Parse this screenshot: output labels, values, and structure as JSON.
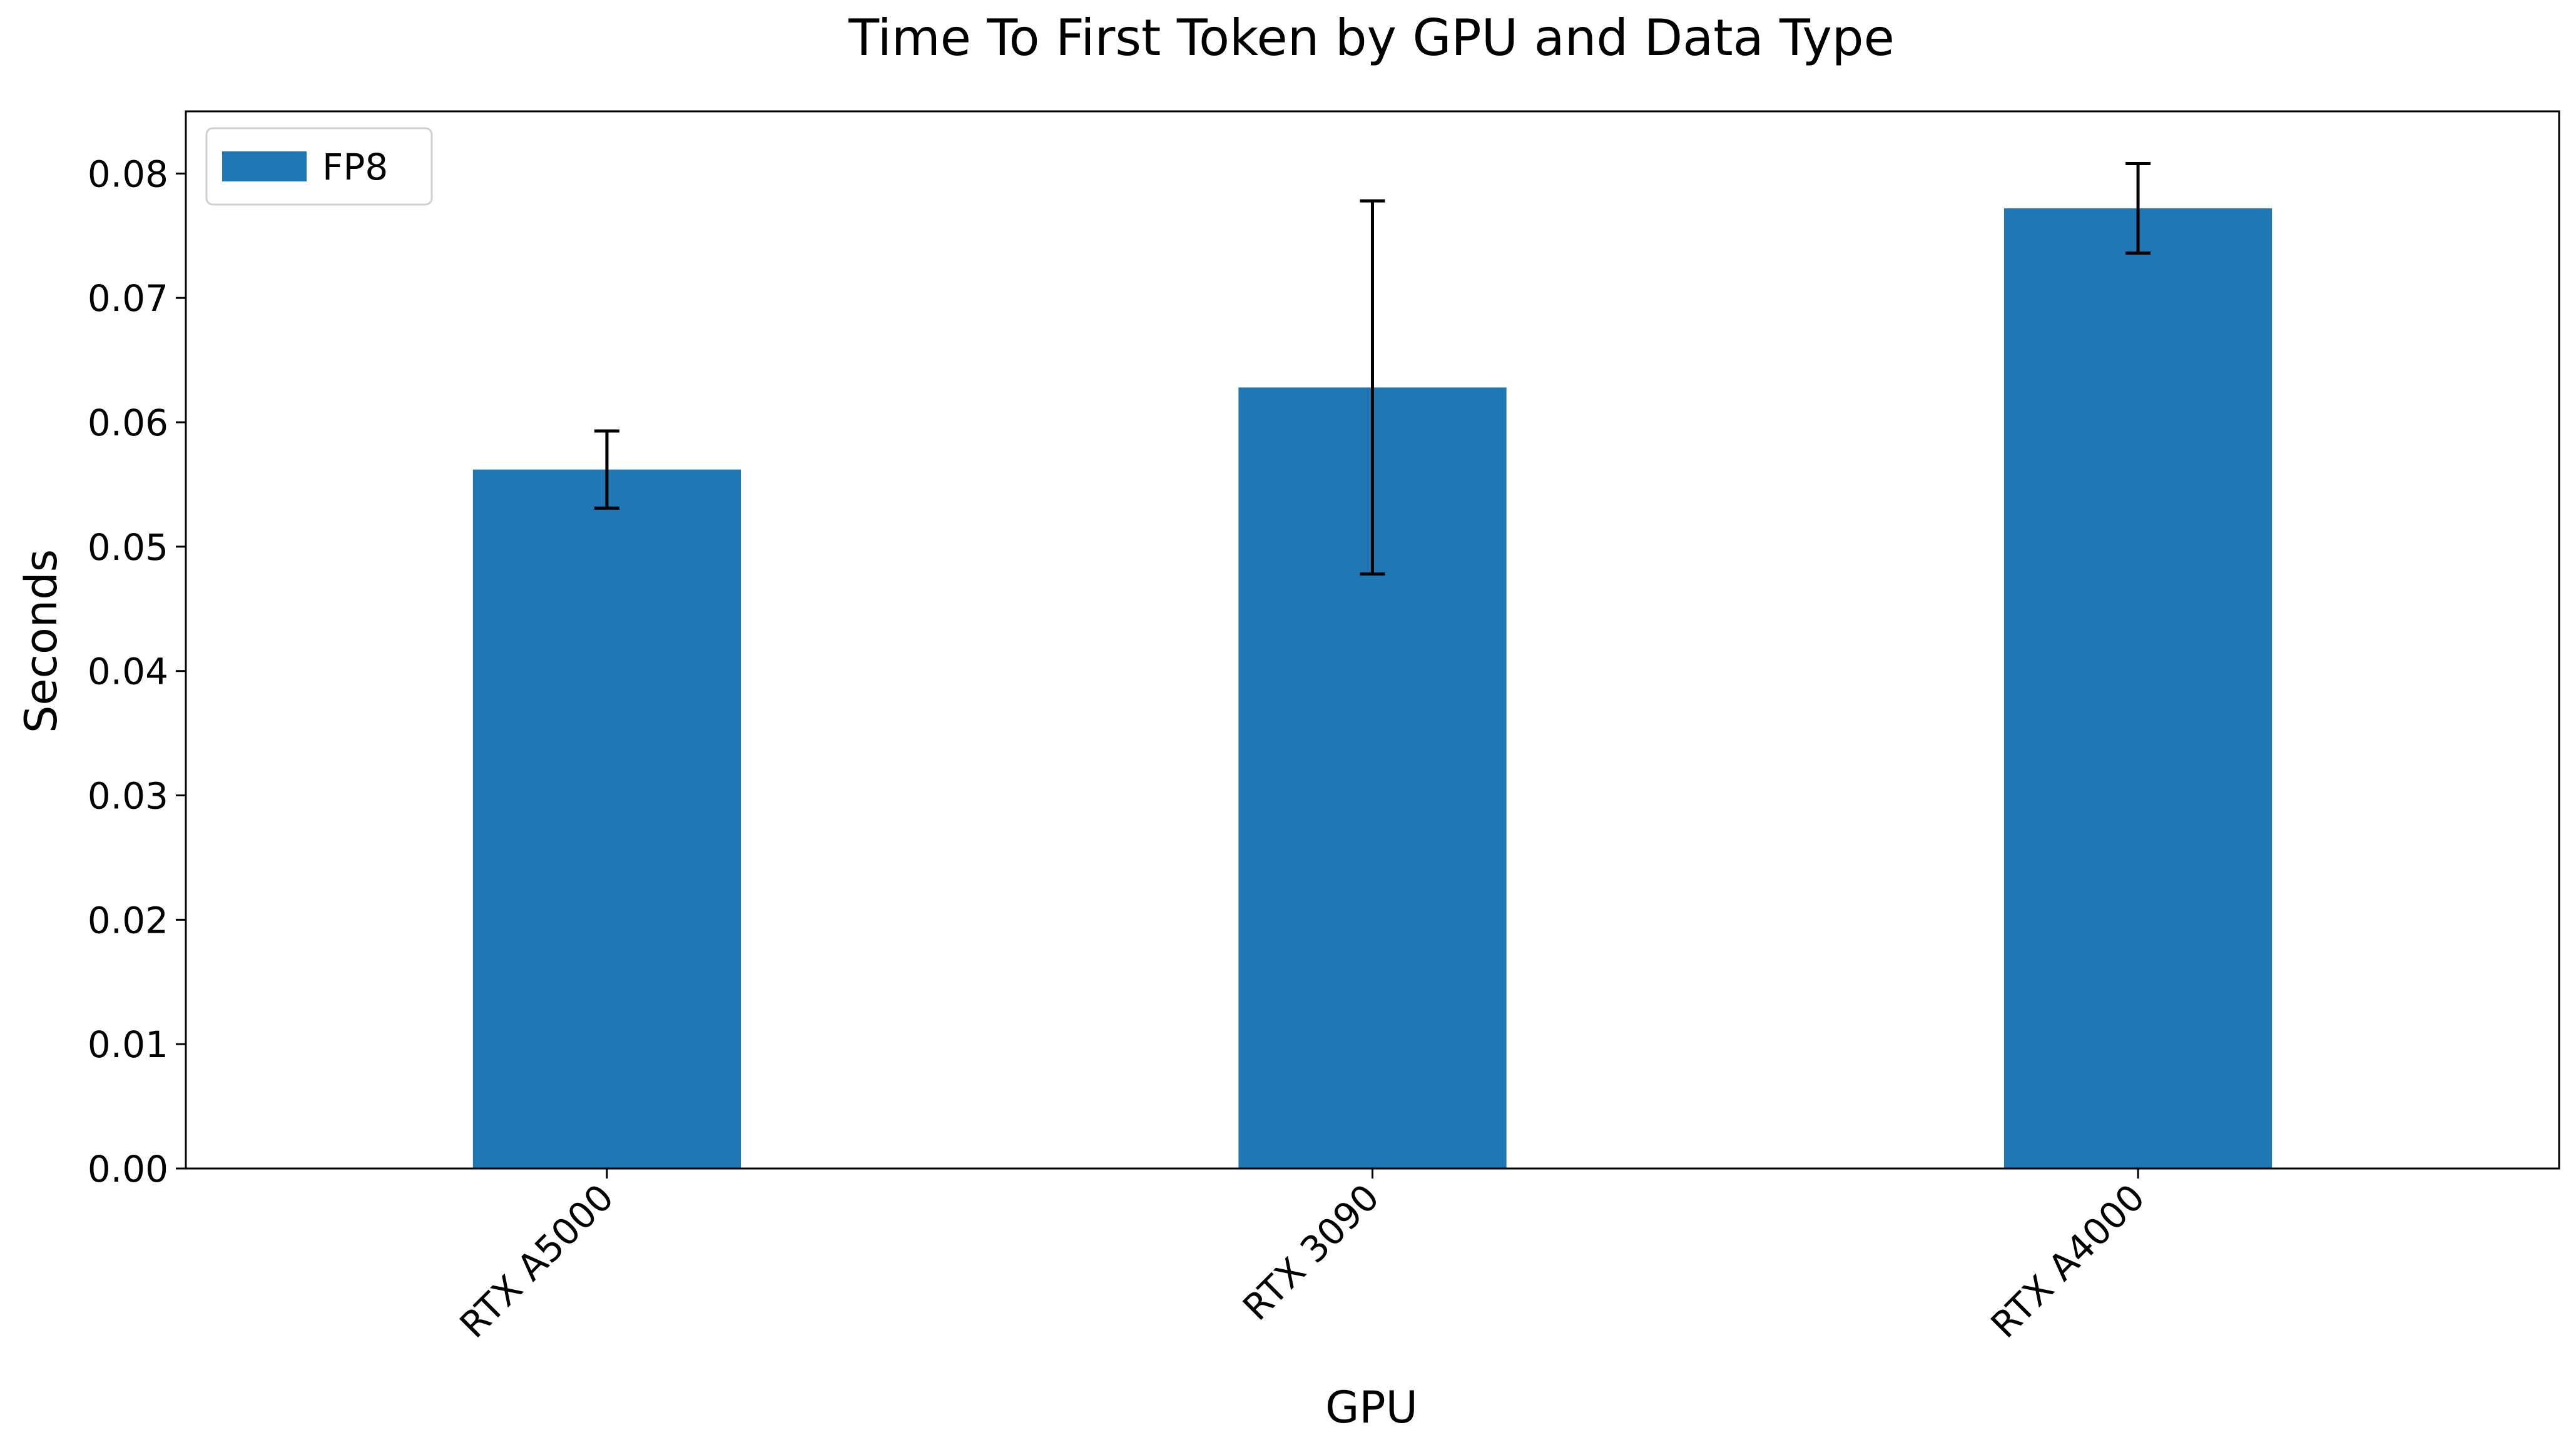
{
  "chart_data": {
    "type": "bar",
    "title": "Time To First Token by GPU and Data Type",
    "xlabel": "GPU",
    "ylabel": "Seconds",
    "categories": [
      "RTX A5000",
      "RTX 3090",
      "RTX A4000"
    ],
    "series": [
      {
        "name": "FP8",
        "values": [
          0.0562,
          0.0628,
          0.0772
        ],
        "error": [
          0.0031,
          0.015,
          0.0036
        ],
        "color": "#1f77b4"
      }
    ],
    "ylim": [
      0,
      0.085
    ],
    "yticks": [
      0.0,
      0.01,
      0.02,
      0.03,
      0.04,
      0.05,
      0.06,
      0.07,
      0.08
    ],
    "ytick_labels": [
      "0.00",
      "0.01",
      "0.02",
      "0.03",
      "0.04",
      "0.05",
      "0.06",
      "0.07",
      "0.08"
    ],
    "grid": false,
    "legend_position": "top-left",
    "xtick_rotation": -45
  }
}
